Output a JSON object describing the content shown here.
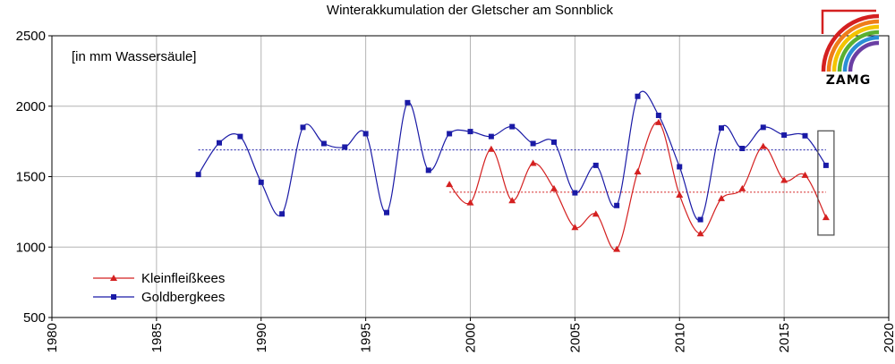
{
  "chart_data": {
    "type": "line",
    "title": "Winterakkumulation der Gletscher am Sonnblick",
    "note": "[in mm Wassersäule]",
    "xlim": [
      1980,
      2020
    ],
    "ylim": [
      500,
      2500
    ],
    "xticks": [
      1980,
      1985,
      1990,
      1995,
      2000,
      2005,
      2010,
      2015,
      2020
    ],
    "yticks": [
      500,
      1000,
      1500,
      2000,
      2500
    ],
    "grid": {
      "horizontal": true,
      "vertical": true
    },
    "legend": "bottom-left",
    "series": [
      {
        "name": "Kleinfleißkees",
        "color": "#d42020",
        "marker": "triangle",
        "x": [
          1999,
          2000,
          2001,
          2002,
          2003,
          2004,
          2005,
          2006,
          2007,
          2008,
          2009,
          2010,
          2011,
          2012,
          2013,
          2014,
          2015,
          2016,
          2017
        ],
        "y": [
          1445,
          1315,
          1695,
          1330,
          1595,
          1415,
          1140,
          1235,
          985,
          1535,
          1885,
          1370,
          1095,
          1345,
          1415,
          1715,
          1475,
          1510,
          1210
        ],
        "mean": 1390
      },
      {
        "name": "Goldbergkees",
        "color": "#1a1aa6",
        "marker": "square",
        "x": [
          1987,
          1988,
          1989,
          1990,
          1991,
          1992,
          1993,
          1994,
          1995,
          1996,
          1997,
          1998,
          1999,
          2000,
          2001,
          2002,
          2003,
          2004,
          2005,
          2006,
          2007,
          2008,
          2009,
          2010,
          2011,
          2012,
          2013,
          2014,
          2015,
          2016,
          2017
        ],
        "y": [
          1515,
          1740,
          1785,
          1460,
          1235,
          1850,
          1735,
          1710,
          1805,
          1245,
          2025,
          1545,
          1805,
          1820,
          1785,
          1855,
          1735,
          1745,
          1385,
          1580,
          1295,
          2070,
          1935,
          1570,
          1195,
          1845,
          1700,
          1850,
          1795,
          1790,
          1580
        ],
        "mean": 1690
      }
    ],
    "highlight_year": 2017
  },
  "logo": {
    "text": "ZAMG",
    "colors": [
      "#d42020",
      "#ef7d1a",
      "#f4c400",
      "#5ab031",
      "#2b8fd6",
      "#6a3fa3"
    ]
  }
}
